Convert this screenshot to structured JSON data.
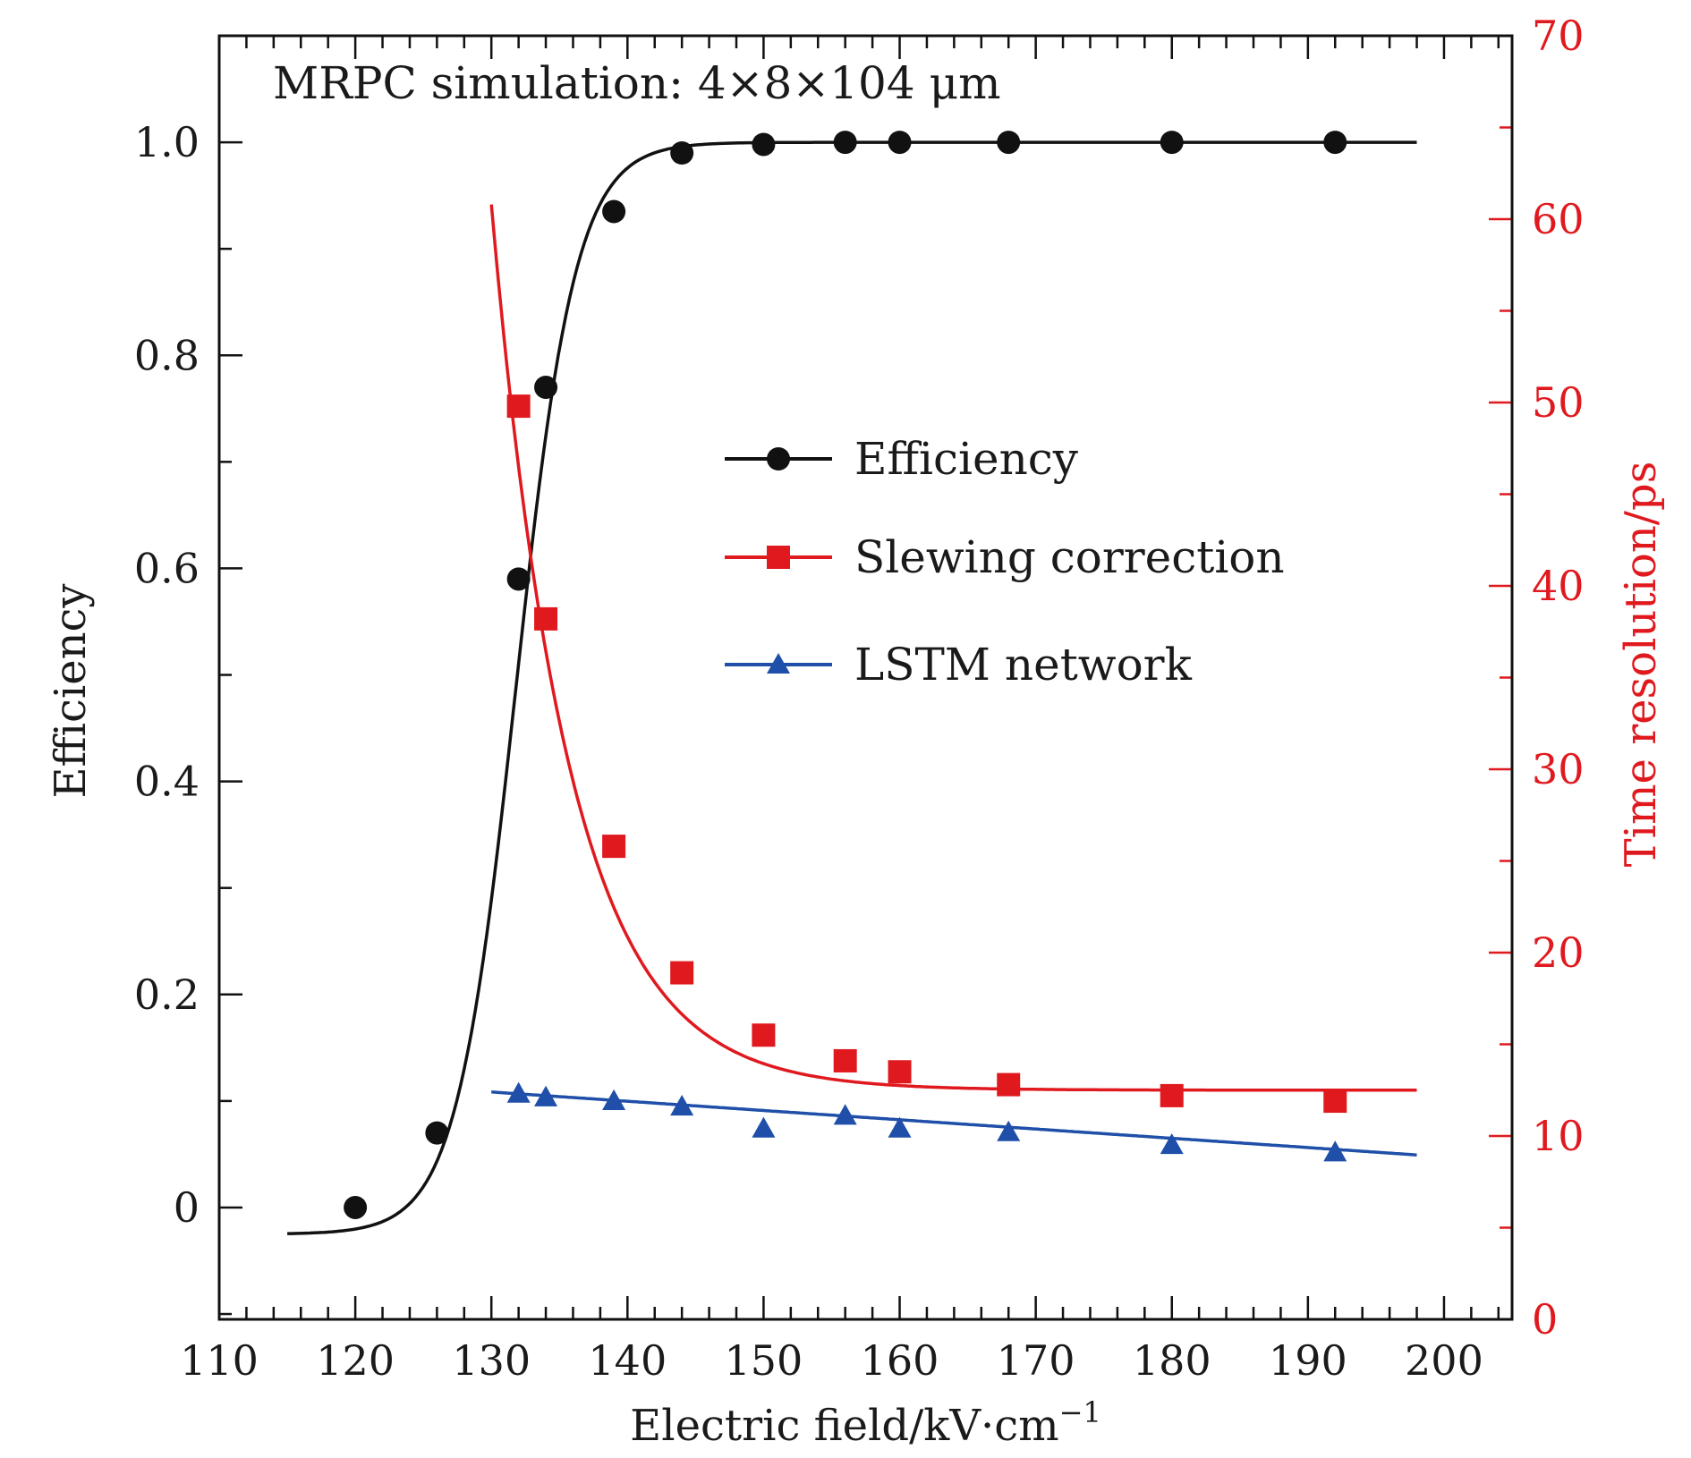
{
  "chart_data": {
    "type": "line",
    "annotation": "MRPC simulation: 4×8×104 μm",
    "xlabel": "Electric field/kV·cm",
    "xlabel_sup": "−1",
    "ylabel_left": "Efficiency",
    "ylabel_right": "Time resolution/ps",
    "xlim": [
      110,
      205
    ],
    "ylim_left": [
      -0.105,
      1.1
    ],
    "ylim_right": [
      0,
      70
    ],
    "x_ticks": [
      "110",
      "120",
      "130",
      "140",
      "150",
      "160",
      "170",
      "180",
      "190",
      "200"
    ],
    "y_left_ticks": [
      "0",
      "0.2",
      "0.4",
      "0.6",
      "0.8",
      "1.0"
    ],
    "y_right_ticks": [
      "0",
      "10",
      "20",
      "30",
      "40",
      "50",
      "60",
      "70"
    ],
    "legend_position": "center-right",
    "colors": {
      "efficiency": "#111111",
      "slewing": "#e0191e",
      "lstm": "#1f4fa8",
      "right_axis": "#e0191e"
    },
    "series": [
      {
        "name": "Efficiency",
        "axis": "left",
        "marker": "circle",
        "x": [
          120,
          126,
          132,
          134,
          139,
          144,
          150,
          156,
          160,
          168,
          180,
          192
        ],
        "y": [
          0.0,
          0.07,
          0.59,
          0.77,
          0.935,
          0.99,
          0.998,
          1.0,
          1.0,
          1.0,
          1.0,
          1.0
        ]
      },
      {
        "name": "Slewing correction",
        "axis": "right",
        "marker": "square",
        "x": [
          132,
          134,
          139,
          144,
          150,
          156,
          160,
          168,
          180,
          192
        ],
        "y": [
          49.8,
          38.2,
          25.8,
          18.9,
          15.5,
          14.1,
          13.5,
          12.8,
          12.2,
          11.9
        ]
      },
      {
        "name": "LSTM network",
        "axis": "right",
        "marker": "triangle",
        "x": [
          132,
          134,
          139,
          144,
          150,
          156,
          160,
          168,
          180,
          192
        ],
        "y": [
          12.3,
          12.1,
          11.9,
          11.6,
          10.4,
          11.1,
          10.4,
          10.2,
          9.5,
          9.1
        ]
      }
    ]
  }
}
